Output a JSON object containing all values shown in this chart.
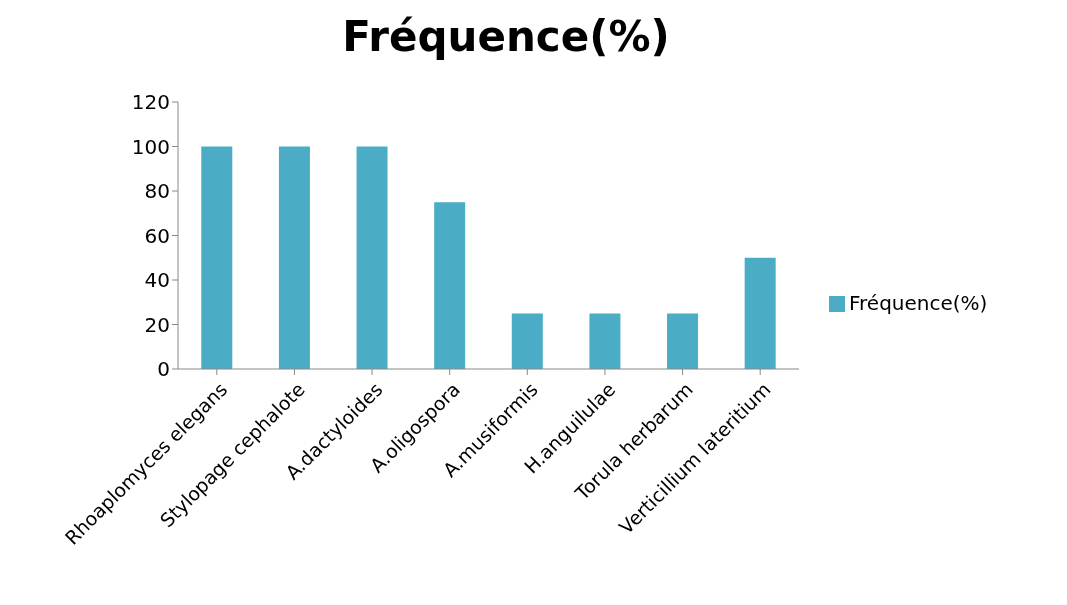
{
  "chart_data": {
    "type": "bar",
    "title": "Fréquence(%)",
    "categories": [
      "Rhoaplomyces elegans",
      "Stylopage cephalote",
      "A.dactyloides",
      "A.oligospora",
      "A.musiformis",
      "H.anguilulae",
      "Torula herbarum",
      "Verticillium lateritium"
    ],
    "series": [
      {
        "name": "Fréquence(%)",
        "color": "#4bacc6",
        "values": [
          100,
          100,
          100,
          75,
          25,
          25,
          25,
          50
        ]
      }
    ],
    "ylim": [
      0,
      120
    ],
    "yticks": [
      0,
      20,
      40,
      60,
      80,
      100,
      120
    ],
    "grid": false,
    "legend": "right"
  }
}
